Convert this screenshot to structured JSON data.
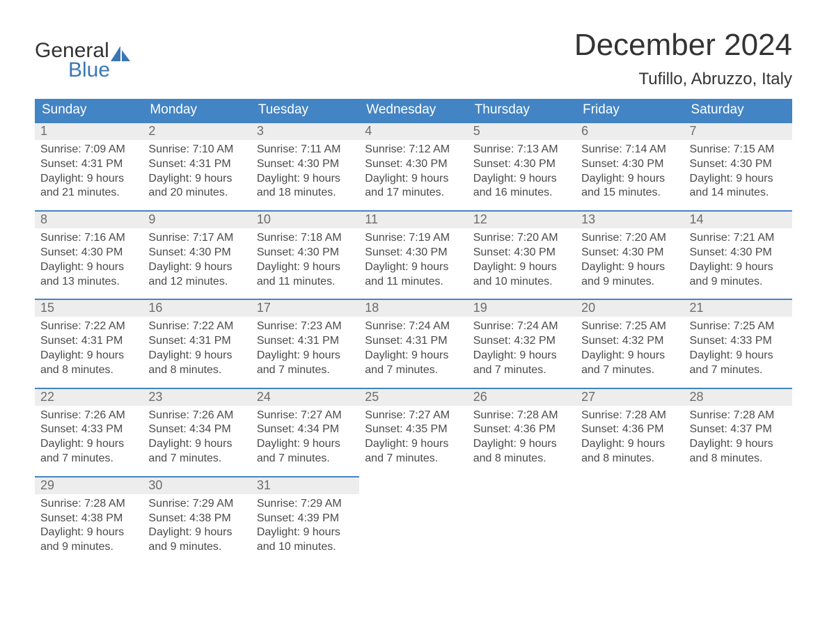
{
  "logo": {
    "line1": "General",
    "line2": "Blue"
  },
  "title": "December 2024",
  "location": "Tufillo, Abruzzo, Italy",
  "colors": {
    "header_blue": "#4384c4",
    "accent_blue": "#3b77b5",
    "gray_bg": "#ededed",
    "text_dark": "#333333",
    "text_gray": "#4a4a4a",
    "white": "#ffffff"
  },
  "days_of_week": [
    "Sunday",
    "Monday",
    "Tuesday",
    "Wednesday",
    "Thursday",
    "Friday",
    "Saturday"
  ],
  "weeks": [
    [
      {
        "n": "1",
        "sunrise": "Sunrise: 7:09 AM",
        "sunset": "Sunset: 4:31 PM",
        "day1": "Daylight: 9 hours",
        "day2": "and 21 minutes."
      },
      {
        "n": "2",
        "sunrise": "Sunrise: 7:10 AM",
        "sunset": "Sunset: 4:31 PM",
        "day1": "Daylight: 9 hours",
        "day2": "and 20 minutes."
      },
      {
        "n": "3",
        "sunrise": "Sunrise: 7:11 AM",
        "sunset": "Sunset: 4:30 PM",
        "day1": "Daylight: 9 hours",
        "day2": "and 18 minutes."
      },
      {
        "n": "4",
        "sunrise": "Sunrise: 7:12 AM",
        "sunset": "Sunset: 4:30 PM",
        "day1": "Daylight: 9 hours",
        "day2": "and 17 minutes."
      },
      {
        "n": "5",
        "sunrise": "Sunrise: 7:13 AM",
        "sunset": "Sunset: 4:30 PM",
        "day1": "Daylight: 9 hours",
        "day2": "and 16 minutes."
      },
      {
        "n": "6",
        "sunrise": "Sunrise: 7:14 AM",
        "sunset": "Sunset: 4:30 PM",
        "day1": "Daylight: 9 hours",
        "day2": "and 15 minutes."
      },
      {
        "n": "7",
        "sunrise": "Sunrise: 7:15 AM",
        "sunset": "Sunset: 4:30 PM",
        "day1": "Daylight: 9 hours",
        "day2": "and 14 minutes."
      }
    ],
    [
      {
        "n": "8",
        "sunrise": "Sunrise: 7:16 AM",
        "sunset": "Sunset: 4:30 PM",
        "day1": "Daylight: 9 hours",
        "day2": "and 13 minutes."
      },
      {
        "n": "9",
        "sunrise": "Sunrise: 7:17 AM",
        "sunset": "Sunset: 4:30 PM",
        "day1": "Daylight: 9 hours",
        "day2": "and 12 minutes."
      },
      {
        "n": "10",
        "sunrise": "Sunrise: 7:18 AM",
        "sunset": "Sunset: 4:30 PM",
        "day1": "Daylight: 9 hours",
        "day2": "and 11 minutes."
      },
      {
        "n": "11",
        "sunrise": "Sunrise: 7:19 AM",
        "sunset": "Sunset: 4:30 PM",
        "day1": "Daylight: 9 hours",
        "day2": "and 11 minutes."
      },
      {
        "n": "12",
        "sunrise": "Sunrise: 7:20 AM",
        "sunset": "Sunset: 4:30 PM",
        "day1": "Daylight: 9 hours",
        "day2": "and 10 minutes."
      },
      {
        "n": "13",
        "sunrise": "Sunrise: 7:20 AM",
        "sunset": "Sunset: 4:30 PM",
        "day1": "Daylight: 9 hours",
        "day2": "and 9 minutes."
      },
      {
        "n": "14",
        "sunrise": "Sunrise: 7:21 AM",
        "sunset": "Sunset: 4:30 PM",
        "day1": "Daylight: 9 hours",
        "day2": "and 9 minutes."
      }
    ],
    [
      {
        "n": "15",
        "sunrise": "Sunrise: 7:22 AM",
        "sunset": "Sunset: 4:31 PM",
        "day1": "Daylight: 9 hours",
        "day2": "and 8 minutes."
      },
      {
        "n": "16",
        "sunrise": "Sunrise: 7:22 AM",
        "sunset": "Sunset: 4:31 PM",
        "day1": "Daylight: 9 hours",
        "day2": "and 8 minutes."
      },
      {
        "n": "17",
        "sunrise": "Sunrise: 7:23 AM",
        "sunset": "Sunset: 4:31 PM",
        "day1": "Daylight: 9 hours",
        "day2": "and 7 minutes."
      },
      {
        "n": "18",
        "sunrise": "Sunrise: 7:24 AM",
        "sunset": "Sunset: 4:31 PM",
        "day1": "Daylight: 9 hours",
        "day2": "and 7 minutes."
      },
      {
        "n": "19",
        "sunrise": "Sunrise: 7:24 AM",
        "sunset": "Sunset: 4:32 PM",
        "day1": "Daylight: 9 hours",
        "day2": "and 7 minutes."
      },
      {
        "n": "20",
        "sunrise": "Sunrise: 7:25 AM",
        "sunset": "Sunset: 4:32 PM",
        "day1": "Daylight: 9 hours",
        "day2": "and 7 minutes."
      },
      {
        "n": "21",
        "sunrise": "Sunrise: 7:25 AM",
        "sunset": "Sunset: 4:33 PM",
        "day1": "Daylight: 9 hours",
        "day2": "and 7 minutes."
      }
    ],
    [
      {
        "n": "22",
        "sunrise": "Sunrise: 7:26 AM",
        "sunset": "Sunset: 4:33 PM",
        "day1": "Daylight: 9 hours",
        "day2": "and 7 minutes."
      },
      {
        "n": "23",
        "sunrise": "Sunrise: 7:26 AM",
        "sunset": "Sunset: 4:34 PM",
        "day1": "Daylight: 9 hours",
        "day2": "and 7 minutes."
      },
      {
        "n": "24",
        "sunrise": "Sunrise: 7:27 AM",
        "sunset": "Sunset: 4:34 PM",
        "day1": "Daylight: 9 hours",
        "day2": "and 7 minutes."
      },
      {
        "n": "25",
        "sunrise": "Sunrise: 7:27 AM",
        "sunset": "Sunset: 4:35 PM",
        "day1": "Daylight: 9 hours",
        "day2": "and 7 minutes."
      },
      {
        "n": "26",
        "sunrise": "Sunrise: 7:28 AM",
        "sunset": "Sunset: 4:36 PM",
        "day1": "Daylight: 9 hours",
        "day2": "and 8 minutes."
      },
      {
        "n": "27",
        "sunrise": "Sunrise: 7:28 AM",
        "sunset": "Sunset: 4:36 PM",
        "day1": "Daylight: 9 hours",
        "day2": "and 8 minutes."
      },
      {
        "n": "28",
        "sunrise": "Sunrise: 7:28 AM",
        "sunset": "Sunset: 4:37 PM",
        "day1": "Daylight: 9 hours",
        "day2": "and 8 minutes."
      }
    ],
    [
      {
        "n": "29",
        "sunrise": "Sunrise: 7:28 AM",
        "sunset": "Sunset: 4:38 PM",
        "day1": "Daylight: 9 hours",
        "day2": "and 9 minutes."
      },
      {
        "n": "30",
        "sunrise": "Sunrise: 7:29 AM",
        "sunset": "Sunset: 4:38 PM",
        "day1": "Daylight: 9 hours",
        "day2": "and 9 minutes."
      },
      {
        "n": "31",
        "sunrise": "Sunrise: 7:29 AM",
        "sunset": "Sunset: 4:39 PM",
        "day1": "Daylight: 9 hours",
        "day2": "and 10 minutes."
      },
      null,
      null,
      null,
      null
    ]
  ]
}
